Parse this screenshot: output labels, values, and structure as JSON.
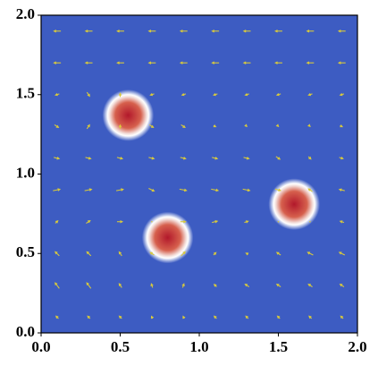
{
  "chart_data": {
    "type": "quiver",
    "background_color": "#3d5cc2",
    "arrow_color": "#d8c93c",
    "xlim": [
      0,
      2
    ],
    "ylim": [
      0,
      2
    ],
    "xticks": [
      {
        "value": 0,
        "label": "0.0"
      },
      0.5,
      {
        "value": 1,
        "label": "1.0"
      },
      1.5,
      {
        "value": 2,
        "label": "2.0"
      }
    ],
    "yticks": [
      {
        "value": 0,
        "label": "0.0"
      },
      0.5,
      {
        "value": 1,
        "label": "1.0"
      },
      1.5,
      {
        "value": 2,
        "label": "2.0"
      }
    ],
    "sources": [
      {
        "x": 0.55,
        "y": 1.37,
        "r": 0.13
      },
      {
        "x": 0.8,
        "y": 0.6,
        "r": 0.13
      },
      {
        "x": 1.6,
        "y": 0.81,
        "r": 0.13
      }
    ],
    "grid_x": [
      0.1,
      0.3,
      0.5,
      0.7,
      0.9,
      1.1,
      1.3,
      1.5,
      1.7,
      1.9
    ],
    "grid_y": [
      0.1,
      0.3,
      0.5,
      0.7,
      0.9,
      1.1,
      1.3,
      1.5,
      1.7,
      1.9
    ],
    "u": [
      [
        -0.02,
        -0.02,
        -0.02,
        -0.01,
        -0.01,
        -0.02,
        -0.02,
        -0.02,
        -0.02,
        -0.02
      ],
      [
        -0.03,
        -0.03,
        -0.02,
        -0.01,
        0.01,
        -0.02,
        -0.03,
        -0.03,
        -0.03,
        -0.03
      ],
      [
        -0.03,
        -0.03,
        -0.02,
        -0.03,
        0.03,
        0.02,
        -0.02,
        -0.03,
        -0.04,
        -0.04
      ],
      [
        0.02,
        0.03,
        0.04,
        0,
        0.04,
        0.04,
        0.03,
        0,
        0,
        -0.03
      ],
      [
        0.05,
        0.05,
        0.05,
        0.04,
        0.05,
        0.05,
        0.05,
        0.04,
        -0.03,
        -0.04
      ],
      [
        0.04,
        0.04,
        0.04,
        0.04,
        0.04,
        0.04,
        0.04,
        0.03,
        0.02,
        0.03
      ],
      [
        0.03,
        0.02,
        0,
        0.03,
        0.03,
        0.02,
        0.01,
        0.01,
        0.01,
        0.02
      ],
      [
        -0.03,
        0.02,
        0,
        -0.03,
        -0.03,
        -0.03,
        -0.03,
        -0.03,
        -0.03,
        -0.03
      ],
      [
        -0.05,
        -0.05,
        -0.05,
        -0.05,
        -0.05,
        -0.05,
        -0.05,
        -0.05,
        -0.05,
        -0.05
      ],
      [
        -0.05,
        -0.05,
        -0.05,
        -0.05,
        -0.05,
        -0.05,
        -0.05,
        -0.05,
        -0.05,
        -0.05
      ]
    ],
    "v": [
      [
        0.02,
        0.02,
        0.02,
        0.02,
        0.02,
        0.02,
        0.02,
        0.02,
        0.02,
        0.02
      ],
      [
        0.04,
        0.04,
        0.03,
        0.03,
        0.03,
        0.02,
        0.02,
        0.02,
        0.02,
        0.02
      ],
      [
        0.03,
        0.03,
        0.03,
        0.02,
        0.03,
        0.02,
        0.01,
        0.02,
        0.02,
        0.02
      ],
      [
        0.02,
        0.02,
        0,
        0,
        0,
        0.01,
        0.01,
        0,
        0,
        0.01
      ],
      [
        0.01,
        0.01,
        0.01,
        -0.02,
        -0.01,
        -0.01,
        -0.01,
        -0.01,
        0.02,
        0.01
      ],
      [
        -0.01,
        -0.01,
        -0.01,
        -0.01,
        -0.01,
        -0.01,
        -0.01,
        -0.02,
        -0.02,
        -0.01
      ],
      [
        -0.02,
        0.03,
        0.03,
        -0.02,
        -0.02,
        -0.01,
        -0.01,
        -0.01,
        -0.01,
        -0.01
      ],
      [
        -0.01,
        -0.03,
        0.03,
        -0.01,
        -0.01,
        -0.01,
        -0.01,
        -0.01,
        -0.01,
        -0.01
      ],
      [
        0,
        0,
        0,
        0,
        0,
        0,
        0,
        0,
        0,
        0
      ],
      [
        0,
        0,
        0,
        0,
        0,
        0,
        0,
        0,
        0,
        0
      ]
    ]
  }
}
